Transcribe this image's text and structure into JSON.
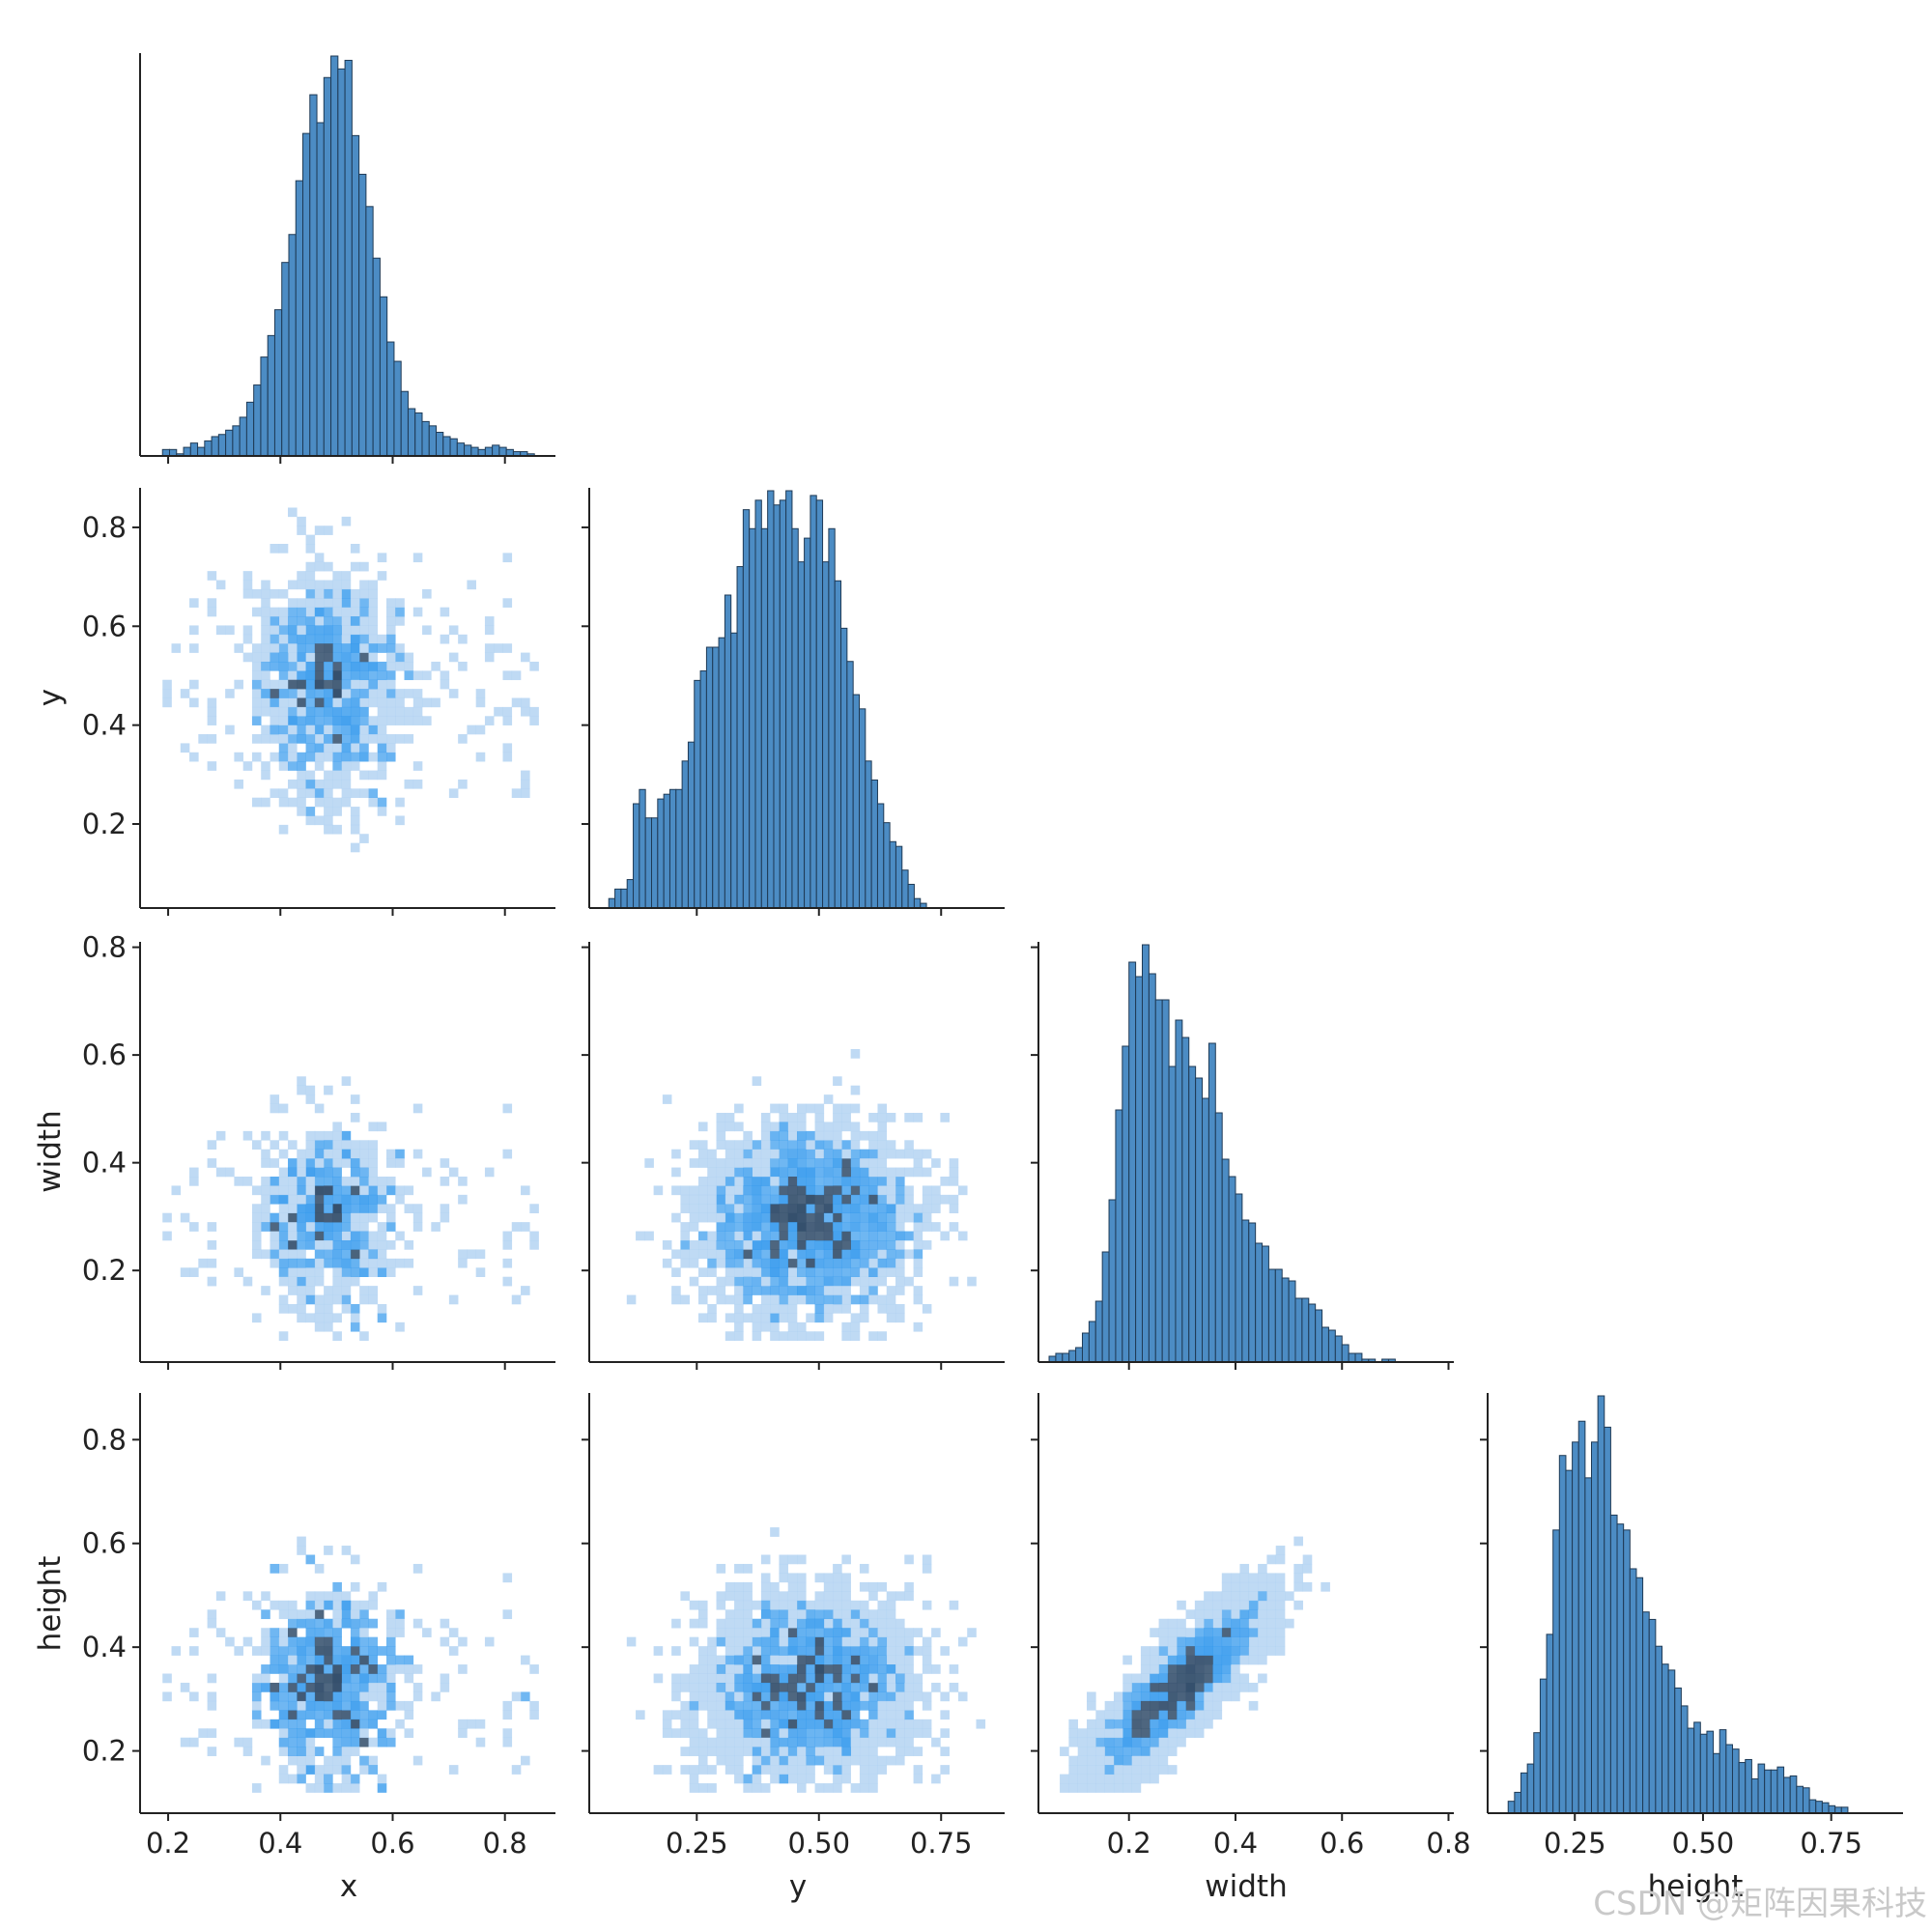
{
  "figure": {
    "watermark": "CSDN @矩阵因果科技"
  },
  "colors": {
    "hist_fill": "#4c8cc4",
    "hist_edge": "#1f3a55",
    "heat_low": "#a9cdf0",
    "heat_mid": "#2a94ec",
    "heat_high": "#35506d",
    "axis": "#222222"
  },
  "chart_data": {
    "type": "pairplot",
    "variables": [
      "x",
      "y",
      "width",
      "height"
    ],
    "diagonal": "histogram",
    "off_diagonal": "2d histogram (heatmap)",
    "corner": true,
    "axes": {
      "x": {
        "label": "x",
        "lim": [
          0.15,
          0.89
        ],
        "ticks": [
          0.2,
          0.4,
          0.6,
          0.8
        ],
        "tick_labels": [
          "0.2",
          "0.4",
          "0.6",
          "0.8"
        ]
      },
      "y": {
        "label": "y",
        "lim": [
          0.03,
          0.88
        ],
        "ticks": [
          0.2,
          0.4,
          0.6,
          0.8
        ],
        "tick_labels": [
          "0.2",
          "0.4",
          "0.6",
          "0.8"
        ],
        "x_ticks": [
          0.25,
          0.5,
          0.75
        ],
        "x_tick_labels": [
          "0.25",
          "0.50",
          "0.75"
        ]
      },
      "width": {
        "label": "width",
        "lim": [
          0.03,
          0.81
        ],
        "ticks": [
          0.2,
          0.4,
          0.6,
          0.8
        ],
        "tick_labels": [
          "0.2",
          "0.4",
          "0.6",
          "0.8"
        ]
      },
      "height": {
        "label": "height",
        "lim": [
          0.08,
          0.89
        ],
        "ticks": [
          0.2,
          0.4,
          0.6,
          0.8
        ],
        "tick_labels": [
          "0.2",
          "0.4",
          "0.6",
          "0.8"
        ],
        "x_ticks": [
          0.25,
          0.5,
          0.75
        ],
        "x_tick_labels": [
          "0.25",
          "0.50",
          "0.75"
        ]
      }
    },
    "histograms": [
      {
        "variable": "x",
        "bin_start": 0.19,
        "bin_width": 0.0125,
        "counts": [
          3,
          3,
          1,
          4,
          6,
          4,
          7,
          9,
          10,
          12,
          14,
          18,
          25,
          33,
          46,
          56,
          68,
          90,
          103,
          128,
          150,
          168,
          155,
          176,
          186,
          180,
          184,
          149,
          131,
          116,
          92,
          74,
          53,
          44,
          30,
          22,
          20,
          16,
          14,
          11,
          9,
          8,
          6,
          5,
          4,
          3,
          4,
          5,
          4,
          3,
          2,
          2,
          1
        ]
      },
      {
        "variable": "y",
        "bin_start": 0.07,
        "bin_width": 0.0125,
        "counts": [
          2,
          4,
          4,
          6,
          22,
          25,
          19,
          19,
          23,
          24,
          25,
          25,
          31,
          35,
          48,
          50,
          55,
          55,
          57,
          66,
          58,
          72,
          84,
          80,
          86,
          80,
          88,
          85,
          86,
          88,
          80,
          73,
          78,
          87,
          86,
          73,
          80,
          69,
          59,
          52,
          45,
          42,
          31,
          27,
          22,
          18,
          14,
          13,
          8,
          5,
          2,
          1
        ]
      },
      {
        "variable": "width",
        "bin_start": 0.05,
        "bin_width": 0.0125,
        "counts": [
          2,
          3,
          3,
          4,
          5,
          10,
          14,
          21,
          38,
          56,
          87,
          109,
          138,
          133,
          144,
          134,
          125,
          125,
          102,
          118,
          112,
          102,
          98,
          91,
          110,
          86,
          70,
          64,
          58,
          49,
          48,
          41,
          40,
          32,
          32,
          29,
          28,
          22,
          22,
          20,
          18,
          12,
          11,
          9,
          6,
          3,
          3,
          1,
          1,
          0,
          1,
          1
        ]
      },
      {
        "variable": "height",
        "bin_start": 0.12,
        "bin_width": 0.0125,
        "counts": [
          8,
          14,
          27,
          33,
          54,
          90,
          120,
          190,
          240,
          230,
          249,
          263,
          225,
          249,
          280,
          259,
          200,
          194,
          190,
          164,
          158,
          135,
          130,
          112,
          100,
          96,
          84,
          72,
          57,
          61,
          53,
          55,
          40,
          56,
          46,
          43,
          34,
          36,
          23,
          33,
          29,
          29,
          31,
          24,
          25,
          18,
          17,
          9,
          8,
          7,
          5,
          4,
          4
        ]
      }
    ],
    "density_2d": [
      {
        "x": "x",
        "y": "y",
        "level": "weak correlation; peak density near x=0.48, y=0.50; sparse tails to x 0.20–0.85, y 0.07–0.83"
      },
      {
        "x": "x",
        "y": "width",
        "level": "weak correlation; peak density near x=0.48, width=0.22–0.35"
      },
      {
        "x": "y",
        "y": "width",
        "level": "weak correlation; dense band y 0.20–0.70, width 0.15–0.45"
      },
      {
        "x": "x",
        "y": "height",
        "level": "weak correlation; peak near x=0.48, height=0.22–0.33"
      },
      {
        "x": "y",
        "y": "height",
        "level": "weak correlation; dense band y 0.20–0.70, height 0.20–0.40"
      },
      {
        "x": "width",
        "y": "height",
        "level": "strong positive correlation; peak near width=0.20, height=0.22"
      }
    ]
  }
}
